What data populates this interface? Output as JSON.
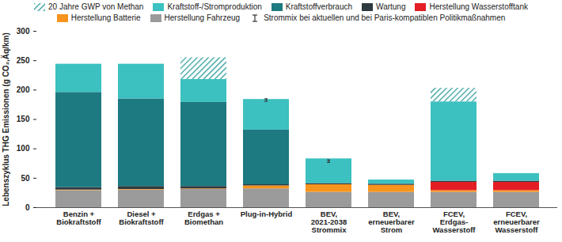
{
  "chart_data": {
    "type": "bar",
    "stacked": true,
    "grid": false,
    "legend": "top",
    "y_label": "Lebenszyklus THG Emissionen (g CO₂,Äq/km)",
    "categories": [
      "Benzin +\nBiokraftstoff",
      "Diesel +\nBiokraftstoff",
      "Erdgas +\nBiomethan",
      "Plug-in-Hybrid",
      "BEV,\n2021-2038\nStrommix",
      "BEV,\nerneuerbarer\nStrom",
      "FCEV,\nErdgas-\nWasserstoff",
      "FCEV,\nerneuerbarer\nWasserstoff"
    ],
    "ylim": [
      0,
      300
    ],
    "yticks": [
      0,
      50,
      100,
      150,
      200,
      250,
      300
    ],
    "series": [
      {
        "name": "Herstellung Fahrzeug",
        "color": "#9b9b9b",
        "values": [
          29,
          30,
          31,
          32,
          26,
          26,
          26,
          26
        ]
      },
      {
        "name": "Herstellung Batterie",
        "color": "#f7941d",
        "values": [
          1,
          1,
          1,
          5,
          13,
          12,
          3,
          3
        ]
      },
      {
        "name": "Herstellung Wasserstofftank",
        "color": "#e31e24",
        "values": [
          0,
          0,
          0,
          0,
          0,
          0,
          14,
          14
        ]
      },
      {
        "name": "Wartung",
        "color": "#2f3a40",
        "values": [
          4,
          5,
          4,
          2,
          2,
          2,
          2,
          2
        ]
      },
      {
        "name": "Kraftstoffverbrauch",
        "color": "#1d7a80",
        "values": [
          162,
          149,
          143,
          93,
          0,
          0,
          0,
          0
        ]
      },
      {
        "name": "Kraftstoff-/Stromproduktion",
        "color": "#3cc0c0",
        "values": [
          48,
          59,
          39,
          52,
          42,
          7,
          135,
          13
        ]
      },
      {
        "name": "20 Jahre GWP von Methan",
        "color": "#2a9a9a",
        "line_style": "hatched",
        "values": [
          0,
          0,
          37,
          0,
          0,
          0,
          23,
          0
        ]
      }
    ],
    "error_bars": {
      "name": "Strommix bei aktuellen und bei Paris-kompatiblen Politikmaßnahmen",
      "color": "#333333",
      "low": [
        null,
        null,
        null,
        181,
        77,
        null,
        null,
        null
      ],
      "high": [
        null,
        null,
        null,
        185,
        81,
        null,
        null,
        null
      ]
    }
  }
}
